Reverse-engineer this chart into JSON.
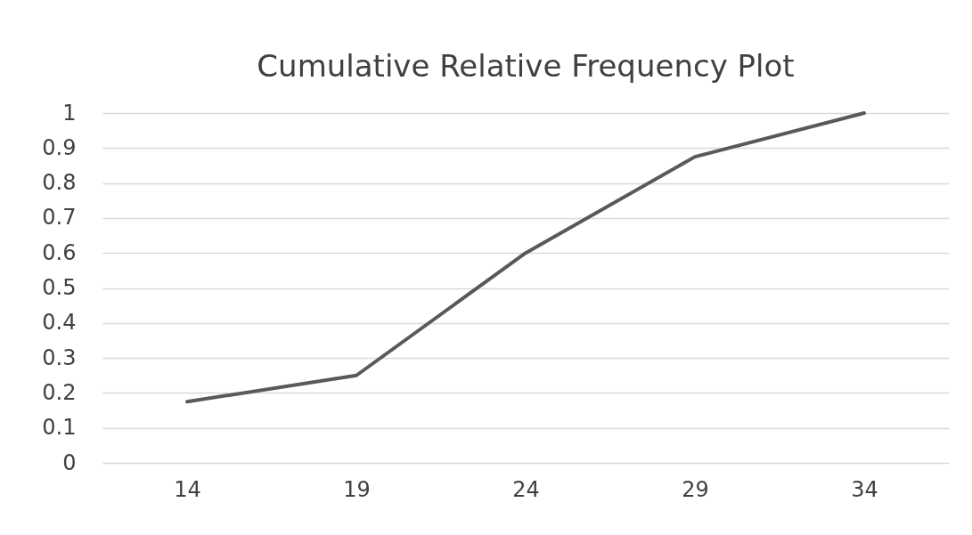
{
  "chart_data": {
    "type": "line",
    "title": "Cumulative Relative Frequency Plot",
    "categories": [
      "14",
      "19",
      "24",
      "29",
      "34"
    ],
    "series": [
      {
        "color": "#595959",
        "values": [
          0.175,
          0.25,
          0.6,
          0.875,
          1
        ]
      }
    ],
    "ylim": [
      0,
      1
    ],
    "yticks": [
      0,
      0.1,
      0.2,
      0.3,
      0.4,
      0.5,
      0.6,
      0.7,
      0.8,
      0.9,
      1
    ],
    "grid": "y",
    "legend": false,
    "marker": "none",
    "line_style": "solid"
  }
}
